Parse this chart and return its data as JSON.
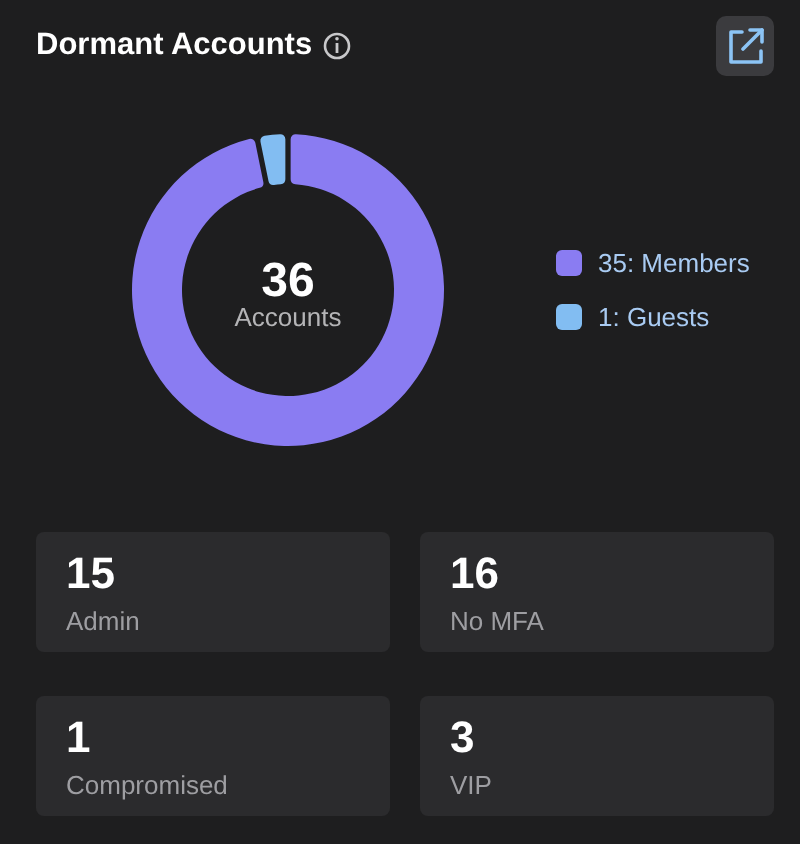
{
  "chart_data": [
    {
      "type": "donut",
      "title": "Dormant Accounts",
      "categories": [
        "35: Members",
        "1: Guests"
      ],
      "values": [
        35,
        1
      ],
      "colors": [
        "#8a7cf2",
        "#82bdf2"
      ],
      "legend": "right",
      "annotations": [
        "36",
        "Accounts"
      ]
    },
    {
      "type": "other",
      "categories": [
        "Admin",
        "No MFA",
        "Compromised",
        "VIP"
      ],
      "values": [
        15,
        16,
        1,
        3
      ],
      "data_labels": true
    }
  ]
}
